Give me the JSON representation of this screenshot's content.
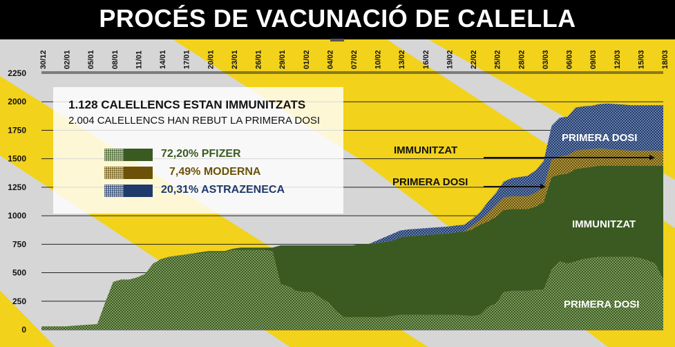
{
  "title": "PROCÉS DE VACUNACIÓ DE CALELLA",
  "summary": {
    "line1": "1.128 CALELLENCS ESTAN IMMUNITZATS",
    "line2": "2.004 CALELLENCS HAN REBUT LA PRIMERA DOSI"
  },
  "legend": [
    {
      "label": "72,20% PFIZER",
      "color": "#3a5a22",
      "text_color": "#3a5a22"
    },
    {
      "label": "7,49% MODERNA",
      "color": "#6b5208",
      "text_color": "#6b5208",
      "indent": true
    },
    {
      "label": "20,31% ASTRAZENECA",
      "color": "#1f3a6b",
      "text_color": "#1f3a6b"
    }
  ],
  "annotations": {
    "immunitzat_arrow": "IMMUNITZAT",
    "primera_dosi_arrow": "PRIMERA DOSI",
    "primera_dosi_astra": "PRIMERA DOSI",
    "immunitzat_pfizer": "IMMUNITZAT",
    "primera_dosi_pfizer": "PRIMERA DOSI"
  },
  "colors": {
    "pfizer": "#3a5a22",
    "pfizer_light": "#6f8d52",
    "moderna": "#6b5208",
    "moderna_light": "#a08a3a",
    "astrazeneca": "#1f3a6b",
    "astrazeneca_light": "#5f77a3",
    "background_stripe": "#f2d21b"
  },
  "chart_data": {
    "type": "area",
    "ylim": [
      0,
      2250
    ],
    "yticks": [
      0,
      250,
      500,
      750,
      1000,
      1250,
      1500,
      1750,
      2000,
      2250
    ],
    "x_tick_labels": [
      "30/12",
      "02/01",
      "05/01",
      "08/01",
      "11/01",
      "14/01",
      "17/01",
      "20/01",
      "23/01",
      "26/01",
      "29/01",
      "01/02",
      "04/02",
      "07/02",
      "10/02",
      "13/02",
      "16/02",
      "19/02",
      "22/02",
      "25/02",
      "28/02",
      "03/03",
      "06/03",
      "09/03",
      "12/03",
      "15/03",
      "18/03"
    ],
    "x": [
      "30/12",
      "31/12",
      "01/01",
      "02/01",
      "03/01",
      "04/01",
      "05/01",
      "06/01",
      "07/01",
      "08/01",
      "09/01",
      "10/01",
      "11/01",
      "12/01",
      "13/01",
      "14/01",
      "15/01",
      "16/01",
      "17/01",
      "18/01",
      "19/01",
      "20/01",
      "21/01",
      "22/01",
      "23/01",
      "24/01",
      "25/01",
      "26/01",
      "27/01",
      "28/01",
      "29/01",
      "30/01",
      "31/01",
      "01/02",
      "02/02",
      "03/02",
      "04/02",
      "05/02",
      "06/02",
      "07/02",
      "08/02",
      "09/02",
      "10/02",
      "11/02",
      "12/02",
      "13/02",
      "14/02",
      "15/02",
      "16/02",
      "17/02",
      "18/02",
      "19/02",
      "20/02",
      "21/02",
      "22/02",
      "23/02",
      "24/02",
      "25/02",
      "26/02",
      "27/02",
      "28/02",
      "01/03",
      "02/03",
      "03/03",
      "04/03",
      "05/03",
      "06/03",
      "07/03",
      "08/03",
      "09/03",
      "10/03",
      "11/03",
      "12/03",
      "13/03",
      "14/03",
      "15/03",
      "16/03",
      "17/03",
      "18/03"
    ],
    "series": [
      {
        "name": "PFIZER PRIMERA DOSI",
        "values": [
          30,
          30,
          30,
          30,
          35,
          40,
          45,
          50,
          240,
          420,
          440,
          440,
          460,
          490,
          580,
          620,
          640,
          650,
          660,
          670,
          670,
          680,
          680,
          680,
          700,
          700,
          700,
          700,
          700,
          690,
          400,
          380,
          340,
          330,
          330,
          280,
          240,
          160,
          110,
          110,
          110,
          110,
          110,
          110,
          120,
          130,
          130,
          130,
          130,
          130,
          130,
          130,
          130,
          125,
          120,
          130,
          200,
          230,
          330,
          340,
          340,
          340,
          350,
          350,
          530,
          600,
          580,
          600,
          620,
          630,
          640,
          640,
          640,
          640,
          640,
          630,
          610,
          580,
          440
        ]
      },
      {
        "name": "PFIZER IMMUNITZAT",
        "values": [
          0,
          0,
          0,
          0,
          0,
          0,
          0,
          0,
          0,
          0,
          0,
          0,
          0,
          0,
          0,
          0,
          0,
          0,
          0,
          0,
          10,
          10,
          10,
          10,
          10,
          20,
          20,
          20,
          20,
          30,
          340,
          360,
          400,
          410,
          410,
          460,
          500,
          580,
          630,
          630,
          640,
          640,
          650,
          660,
          660,
          680,
          690,
          695,
          700,
          705,
          710,
          715,
          725,
          735,
          760,
          790,
          750,
          760,
          720,
          720,
          720,
          720,
          730,
          770,
          810,
          760,
          790,
          810,
          800,
          800,
          800,
          800,
          800,
          800,
          800,
          810,
          830,
          860,
          1000
        ]
      },
      {
        "name": "MODERNA",
        "values": [
          0,
          0,
          0,
          0,
          0,
          0,
          0,
          0,
          0,
          0,
          0,
          0,
          0,
          0,
          0,
          0,
          0,
          0,
          0,
          0,
          0,
          0,
          0,
          0,
          0,
          0,
          0,
          0,
          0,
          0,
          0,
          0,
          0,
          0,
          0,
          0,
          0,
          0,
          0,
          0,
          0,
          0,
          0,
          0,
          0,
          0,
          0,
          0,
          0,
          0,
          0,
          0,
          0,
          0,
          30,
          40,
          70,
          100,
          110,
          110,
          110,
          110,
          120,
          130,
          150,
          160,
          160,
          160,
          160,
          155,
          150,
          145,
          140,
          135,
          130,
          130,
          130,
          130,
          130
        ]
      },
      {
        "name": "ASTRAZENECA",
        "values": [
          0,
          0,
          0,
          0,
          0,
          0,
          0,
          0,
          0,
          0,
          0,
          0,
          0,
          0,
          0,
          0,
          0,
          0,
          0,
          0,
          0,
          0,
          0,
          0,
          0,
          0,
          0,
          0,
          0,
          0,
          0,
          0,
          0,
          0,
          0,
          0,
          0,
          0,
          0,
          0,
          0,
          0,
          20,
          40,
          60,
          60,
          60,
          60,
          60,
          60,
          60,
          60,
          60,
          60,
          60,
          70,
          100,
          110,
          140,
          160,
          170,
          180,
          200,
          230,
          300,
          340,
          340,
          380,
          380,
          380,
          390,
          400,
          400,
          400,
          400,
          400,
          400,
          400,
          400
        ]
      }
    ]
  }
}
